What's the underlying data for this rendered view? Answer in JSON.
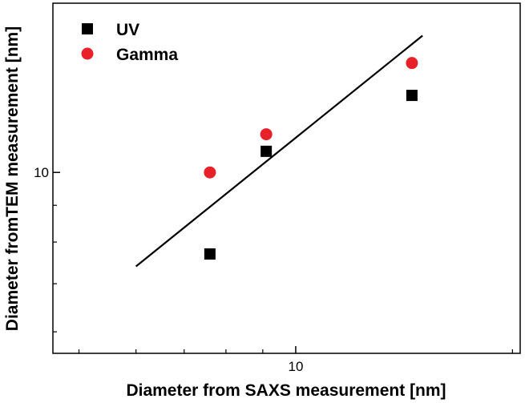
{
  "chart_data": {
    "type": "scatter",
    "title": "",
    "xlabel": "Diameter from SAXS measurement [nm]",
    "ylabel": "Diameter fromTEM measurement [nm]",
    "xscale": "log",
    "yscale": "log",
    "xlim": [
      4.6,
      20.5
    ],
    "ylim": [
      5.6,
      17.2
    ],
    "xticks": [
      {
        "value": 10,
        "label": "10"
      }
    ],
    "yticks": [
      {
        "value": 10,
        "label": "10"
      }
    ],
    "grid": false,
    "legend_position": "top-left",
    "series": [
      {
        "name": "UV",
        "marker": "square",
        "color": "#000000",
        "points": [
          {
            "x": 7.6,
            "y": 7.7
          },
          {
            "x": 9.1,
            "y": 10.7
          },
          {
            "x": 14.5,
            "y": 12.8
          }
        ]
      },
      {
        "name": "Gamma",
        "marker": "circle",
        "color": "#e8202a",
        "points": [
          {
            "x": 7.6,
            "y": 10.0
          },
          {
            "x": 9.1,
            "y": 11.3
          },
          {
            "x": 14.5,
            "y": 14.2
          }
        ]
      }
    ],
    "fit_line": {
      "color": "#000000",
      "points": [
        {
          "x": 6.0,
          "y": 7.4
        },
        {
          "x": 15.0,
          "y": 15.5
        }
      ]
    }
  }
}
